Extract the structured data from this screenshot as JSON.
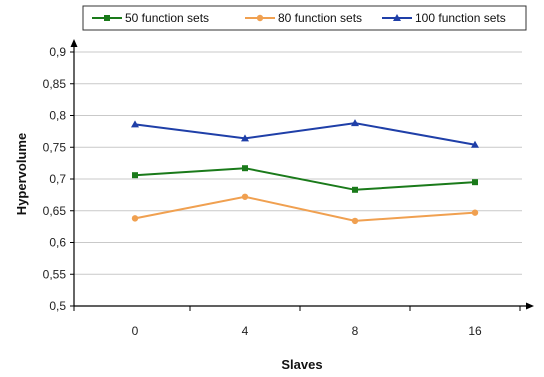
{
  "chart_data": {
    "type": "line",
    "categories": [
      "0",
      "4",
      "8",
      "16"
    ],
    "series": [
      {
        "name": "50 function sets",
        "values": [
          0.706,
          0.717,
          0.683,
          0.695
        ],
        "color": "#1a7a1a",
        "marker": "square"
      },
      {
        "name": "80 function sets",
        "values": [
          0.638,
          0.672,
          0.634,
          0.647
        ],
        "color": "#f0a050",
        "marker": "circle"
      },
      {
        "name": "100 function sets",
        "values": [
          0.786,
          0.764,
          0.788,
          0.754
        ],
        "color": "#1f3fa8",
        "marker": "triangle"
      }
    ],
    "xlabel": "Slaves",
    "ylabel": "Hypervolume",
    "ylim": [
      0.5,
      0.9
    ],
    "yticks": [
      "0,5",
      "0,55",
      "0,6",
      "0,65",
      "0,7",
      "0,75",
      "0,8",
      "0,85",
      "0,9"
    ],
    "grid": true,
    "legend_position": "top"
  }
}
